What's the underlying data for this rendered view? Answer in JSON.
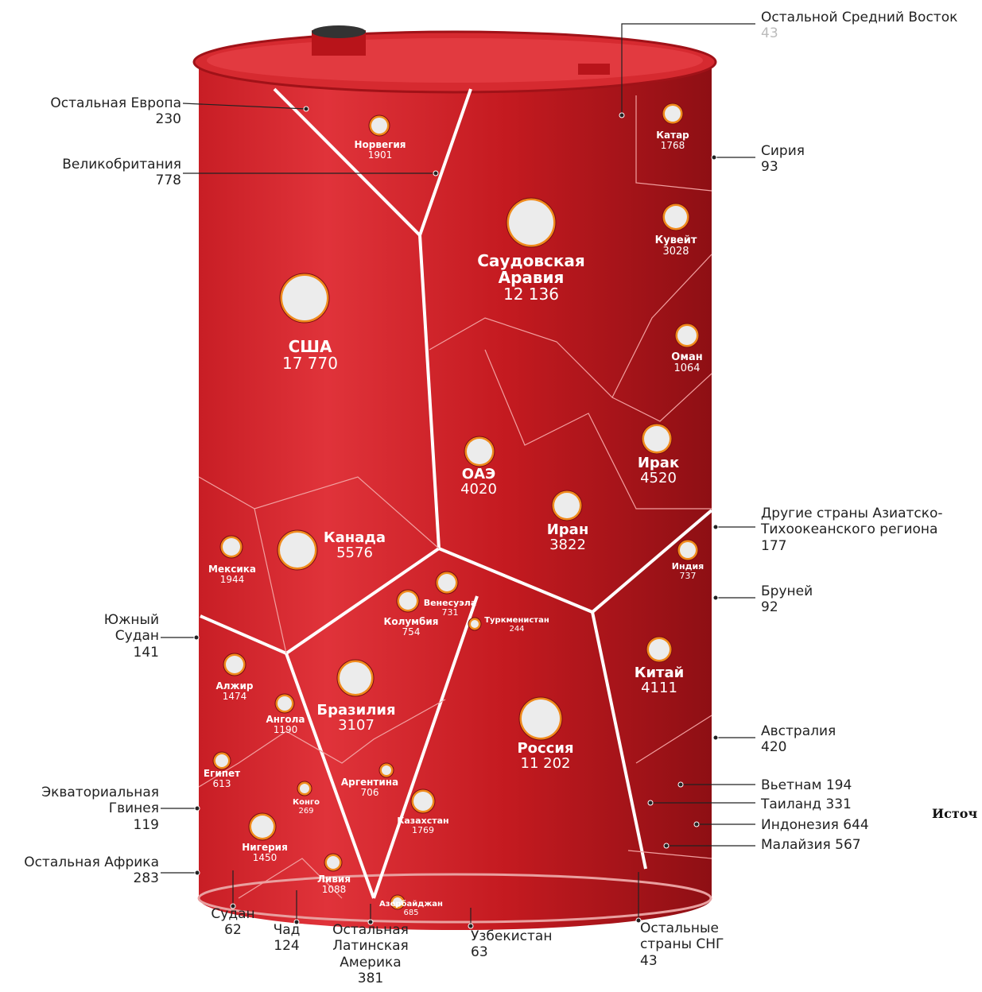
{
  "inner": [
    {
      "name": "Норвегия",
      "value": "1901"
    },
    {
      "name": "Саудовская Аравия",
      "value": "12 136"
    },
    {
      "name": "США",
      "value": "17 770"
    },
    {
      "name": "Катар",
      "value": "1768"
    },
    {
      "name": "Кувейт",
      "value": "3028"
    },
    {
      "name": "Оман",
      "value": "1064"
    },
    {
      "name": "Ирак",
      "value": "4520"
    },
    {
      "name": "ОАЭ",
      "value": "4020"
    },
    {
      "name": "Иран",
      "value": "3822"
    },
    {
      "name": "Канада",
      "value": "5576"
    },
    {
      "name": "Мексика",
      "value": "1944"
    },
    {
      "name": "Индия",
      "value": "737"
    },
    {
      "name": "Венесуэла",
      "value": "731"
    },
    {
      "name": "Колумбия",
      "value": "754"
    },
    {
      "name": "Туркменистан",
      "value": "244"
    },
    {
      "name": "Алжир",
      "value": "1474"
    },
    {
      "name": "Ангола",
      "value": "1190"
    },
    {
      "name": "Бразилия",
      "value": "3107"
    },
    {
      "name": "Китай",
      "value": "4111"
    },
    {
      "name": "Россия",
      "value": "11 202"
    },
    {
      "name": "Египет",
      "value": "613"
    },
    {
      "name": "Конго",
      "value": "269"
    },
    {
      "name": "Аргентина",
      "value": "706"
    },
    {
      "name": "Казахстан",
      "value": "1769"
    },
    {
      "name": "Нигерия",
      "value": "1450"
    },
    {
      "name": "Ливия",
      "value": "1088"
    },
    {
      "name": "Азербайджан",
      "value": "685"
    }
  ],
  "callouts": [
    {
      "name": "Остальная Европа",
      "value": "230"
    },
    {
      "name": "Великобритания",
      "value": "778"
    },
    {
      "name": "Остальной Средний Восток",
      "value": "43"
    },
    {
      "name": "Сирия",
      "value": "93"
    },
    {
      "name": "Другие страны Азиатско-Тихоокеанского региона",
      "value": "177"
    },
    {
      "name": "Бруней",
      "value": "92"
    },
    {
      "name": "Южный Судан",
      "value": "141"
    },
    {
      "name": "Австралия",
      "value": "420"
    },
    {
      "name": "Вьетнам",
      "value": "194"
    },
    {
      "name": "Таиланд",
      "value": "331"
    },
    {
      "name": "Индонезия",
      "value": "644"
    },
    {
      "name": "Малайзия",
      "value": "567"
    },
    {
      "name": "Экваториальная Гвинея",
      "value": "119"
    },
    {
      "name": "Остальная Африка",
      "value": "283"
    },
    {
      "name": "Судан",
      "value": "62"
    },
    {
      "name": "Чад",
      "value": "124"
    },
    {
      "name": "Остальная Латинская Америка",
      "value": "381"
    },
    {
      "name": "Узбекистан",
      "value": "63"
    },
    {
      "name": "Остальные страны СНГ",
      "value": "43"
    }
  ],
  "source_fragment": "Источ"
}
